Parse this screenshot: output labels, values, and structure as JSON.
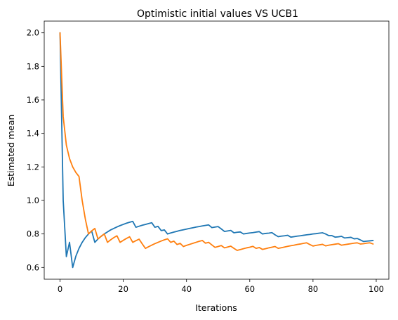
{
  "chart_data": {
    "type": "line",
    "title": "Optimistic initial values VS UCB1",
    "xlabel": "Iterations",
    "ylabel": "Estimated mean",
    "xlim": [
      -5,
      104
    ],
    "ylim": [
      0.53,
      2.07
    ],
    "xticks": [
      0,
      20,
      40,
      60,
      80,
      100
    ],
    "yticks": [
      0.6,
      0.8,
      1.0,
      1.2,
      1.4,
      1.6,
      1.8,
      2.0
    ],
    "xtick_labels": [
      "0",
      "20",
      "40",
      "60",
      "80",
      "100"
    ],
    "ytick_labels": [
      "0.6",
      "0.8",
      "1.0",
      "1.2",
      "1.4",
      "1.6",
      "1.8",
      "2.0"
    ],
    "grid": false,
    "series": [
      {
        "color": "#1f77b4",
        "points": [
          [
            0,
            2.0
          ],
          [
            1,
            1.0
          ],
          [
            2,
            0.665
          ],
          [
            3,
            0.75
          ],
          [
            4,
            0.6
          ],
          [
            5,
            0.667
          ],
          [
            6,
            0.714
          ],
          [
            7,
            0.75
          ],
          [
            8,
            0.778
          ],
          [
            9,
            0.8
          ],
          [
            10,
            0.818
          ],
          [
            11,
            0.75
          ],
          [
            12,
            0.77
          ],
          [
            13,
            0.786
          ],
          [
            14,
            0.8
          ],
          [
            15,
            0.812
          ],
          [
            16,
            0.824
          ],
          [
            17,
            0.833
          ],
          [
            18,
            0.842
          ],
          [
            19,
            0.85
          ],
          [
            20,
            0.857
          ],
          [
            21,
            0.864
          ],
          [
            22,
            0.87
          ],
          [
            23,
            0.875
          ],
          [
            24,
            0.84
          ],
          [
            25,
            0.846
          ],
          [
            26,
            0.852
          ],
          [
            27,
            0.857
          ],
          [
            28,
            0.862
          ],
          [
            29,
            0.867
          ],
          [
            30,
            0.84
          ],
          [
            31,
            0.845
          ],
          [
            32,
            0.82
          ],
          [
            33,
            0.824
          ],
          [
            34,
            0.8
          ],
          [
            35,
            0.806
          ],
          [
            36,
            0.811
          ],
          [
            37,
            0.816
          ],
          [
            38,
            0.821
          ],
          [
            39,
            0.825
          ],
          [
            40,
            0.829
          ],
          [
            41,
            0.833
          ],
          [
            42,
            0.837
          ],
          [
            43,
            0.841
          ],
          [
            44,
            0.844
          ],
          [
            45,
            0.848
          ],
          [
            46,
            0.851
          ],
          [
            47,
            0.854
          ],
          [
            48,
            0.838
          ],
          [
            49,
            0.841
          ],
          [
            50,
            0.844
          ],
          [
            51,
            0.83
          ],
          [
            52,
            0.815
          ],
          [
            53,
            0.818
          ],
          [
            54,
            0.821
          ],
          [
            55,
            0.807
          ],
          [
            56,
            0.81
          ],
          [
            57,
            0.812
          ],
          [
            58,
            0.8
          ],
          [
            59,
            0.803
          ],
          [
            60,
            0.806
          ],
          [
            61,
            0.808
          ],
          [
            62,
            0.811
          ],
          [
            63,
            0.814
          ],
          [
            64,
            0.8
          ],
          [
            65,
            0.803
          ],
          [
            66,
            0.805
          ],
          [
            67,
            0.808
          ],
          [
            68,
            0.795
          ],
          [
            69,
            0.784
          ],
          [
            70,
            0.787
          ],
          [
            71,
            0.789
          ],
          [
            72,
            0.792
          ],
          [
            73,
            0.781
          ],
          [
            74,
            0.784
          ],
          [
            75,
            0.787
          ],
          [
            76,
            0.789
          ],
          [
            77,
            0.792
          ],
          [
            78,
            0.795
          ],
          [
            79,
            0.797
          ],
          [
            80,
            0.8
          ],
          [
            81,
            0.802
          ],
          [
            82,
            0.805
          ],
          [
            83,
            0.807
          ],
          [
            84,
            0.8
          ],
          [
            85,
            0.79
          ],
          [
            86,
            0.79
          ],
          [
            87,
            0.781
          ],
          [
            88,
            0.783
          ],
          [
            89,
            0.786
          ],
          [
            90,
            0.776
          ],
          [
            91,
            0.778
          ],
          [
            92,
            0.78
          ],
          [
            93,
            0.771
          ],
          [
            94,
            0.773
          ],
          [
            95,
            0.764
          ],
          [
            96,
            0.755
          ],
          [
            97,
            0.757
          ],
          [
            98,
            0.759
          ],
          [
            99,
            0.761
          ]
        ]
      },
      {
        "color": "#ff7f0e",
        "points": [
          [
            0,
            2.0
          ],
          [
            1,
            1.5
          ],
          [
            2,
            1.33
          ],
          [
            3,
            1.25
          ],
          [
            4,
            1.2
          ],
          [
            5,
            1.167
          ],
          [
            6,
            1.143
          ],
          [
            7,
            1.0
          ],
          [
            8,
            0.889
          ],
          [
            9,
            0.8
          ],
          [
            10,
            0.818
          ],
          [
            11,
            0.833
          ],
          [
            12,
            0.77
          ],
          [
            13,
            0.786
          ],
          [
            14,
            0.8
          ],
          [
            15,
            0.75
          ],
          [
            16,
            0.765
          ],
          [
            17,
            0.778
          ],
          [
            18,
            0.789
          ],
          [
            19,
            0.75
          ],
          [
            20,
            0.762
          ],
          [
            21,
            0.773
          ],
          [
            22,
            0.783
          ],
          [
            23,
            0.75
          ],
          [
            24,
            0.76
          ],
          [
            25,
            0.769
          ],
          [
            26,
            0.741
          ],
          [
            27,
            0.714
          ],
          [
            28,
            0.724
          ],
          [
            29,
            0.733
          ],
          [
            30,
            0.742
          ],
          [
            31,
            0.75
          ],
          [
            32,
            0.758
          ],
          [
            33,
            0.765
          ],
          [
            34,
            0.771
          ],
          [
            35,
            0.75
          ],
          [
            36,
            0.757
          ],
          [
            37,
            0.737
          ],
          [
            38,
            0.744
          ],
          [
            39,
            0.725
          ],
          [
            40,
            0.732
          ],
          [
            41,
            0.738
          ],
          [
            42,
            0.744
          ],
          [
            43,
            0.75
          ],
          [
            44,
            0.756
          ],
          [
            45,
            0.761
          ],
          [
            46,
            0.745
          ],
          [
            47,
            0.75
          ],
          [
            48,
            0.735
          ],
          [
            49,
            0.72
          ],
          [
            50,
            0.725
          ],
          [
            51,
            0.731
          ],
          [
            52,
            0.717
          ],
          [
            53,
            0.722
          ],
          [
            54,
            0.727
          ],
          [
            55,
            0.714
          ],
          [
            56,
            0.702
          ],
          [
            57,
            0.707
          ],
          [
            58,
            0.712
          ],
          [
            59,
            0.717
          ],
          [
            60,
            0.721
          ],
          [
            61,
            0.726
          ],
          [
            62,
            0.714
          ],
          [
            63,
            0.719
          ],
          [
            64,
            0.708
          ],
          [
            65,
            0.712
          ],
          [
            66,
            0.717
          ],
          [
            67,
            0.721
          ],
          [
            68,
            0.725
          ],
          [
            69,
            0.714
          ],
          [
            70,
            0.718
          ],
          [
            71,
            0.722
          ],
          [
            72,
            0.726
          ],
          [
            73,
            0.73
          ],
          [
            74,
            0.733
          ],
          [
            75,
            0.737
          ],
          [
            76,
            0.74
          ],
          [
            77,
            0.744
          ],
          [
            78,
            0.747
          ],
          [
            79,
            0.737
          ],
          [
            80,
            0.728
          ],
          [
            81,
            0.732
          ],
          [
            82,
            0.735
          ],
          [
            83,
            0.738
          ],
          [
            84,
            0.729
          ],
          [
            85,
            0.733
          ],
          [
            86,
            0.736
          ],
          [
            87,
            0.739
          ],
          [
            88,
            0.742
          ],
          [
            89,
            0.733
          ],
          [
            90,
            0.736
          ],
          [
            91,
            0.739
          ],
          [
            92,
            0.742
          ],
          [
            93,
            0.745
          ],
          [
            94,
            0.747
          ],
          [
            95,
            0.74
          ],
          [
            96,
            0.742
          ],
          [
            97,
            0.745
          ],
          [
            98,
            0.747
          ],
          [
            99,
            0.74
          ]
        ]
      }
    ]
  }
}
